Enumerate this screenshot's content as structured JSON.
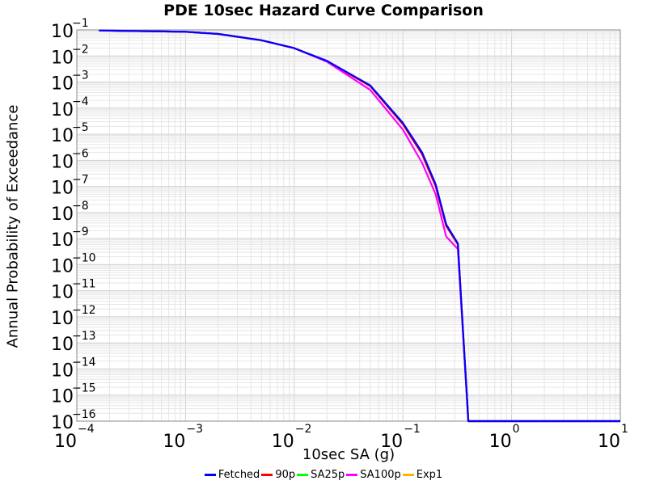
{
  "chart_data": {
    "type": "line",
    "title": "PDE 10sec Hazard Curve Comparison",
    "xlabel": "10sec SA (g)",
    "ylabel": "Annual Probability of Exceedance",
    "x_scale": "log",
    "y_scale": "log",
    "xlim": [
      0.0001,
      10
    ],
    "ylim": [
      1e-16,
      0.1
    ],
    "grid": true,
    "legend_position": "bottom",
    "x_ticks": [
      {
        "base": "10",
        "exp": "−4",
        "value": 0.0001
      },
      {
        "base": "10",
        "exp": "−3",
        "value": 0.001
      },
      {
        "base": "10",
        "exp": "−2",
        "value": 0.01
      },
      {
        "base": "10",
        "exp": "−1",
        "value": 0.1
      },
      {
        "base": "10",
        "exp": "0",
        "value": 1
      },
      {
        "base": "10",
        "exp": "1",
        "value": 10
      }
    ],
    "y_ticks": [
      {
        "base": "10",
        "exp": "−1",
        "value": 0.1
      },
      {
        "base": "10",
        "exp": "−2",
        "value": 0.01
      },
      {
        "base": "10",
        "exp": "−3",
        "value": 0.001
      },
      {
        "base": "10",
        "exp": "−4",
        "value": 0.0001
      },
      {
        "base": "10",
        "exp": "−5",
        "value": 1e-05
      },
      {
        "base": "10",
        "exp": "−6",
        "value": 1e-06
      },
      {
        "base": "10",
        "exp": "−7",
        "value": 1e-07
      },
      {
        "base": "10",
        "exp": "−8",
        "value": 1e-08
      },
      {
        "base": "10",
        "exp": "−9",
        "value": 1e-09
      },
      {
        "base": "10",
        "exp": "−10",
        "value": 1e-10
      },
      {
        "base": "10",
        "exp": "−11",
        "value": 1e-11
      },
      {
        "base": "10",
        "exp": "−12",
        "value": 1e-12
      },
      {
        "base": "10",
        "exp": "−13",
        "value": 1e-13
      },
      {
        "base": "10",
        "exp": "−14",
        "value": 1e-14
      },
      {
        "base": "10",
        "exp": "−15",
        "value": 1e-15
      },
      {
        "base": "10",
        "exp": "−16",
        "value": 1e-16
      }
    ],
    "series": [
      {
        "name": "Fetched",
        "color": "#0000ff",
        "x": [
          0.00016,
          0.001,
          0.002,
          0.005,
          0.01,
          0.02,
          0.05,
          0.1,
          0.15,
          0.2,
          0.25,
          0.32,
          0.4,
          0.5,
          1,
          10
        ],
        "y": [
          0.095,
          0.085,
          0.07,
          0.04,
          0.02,
          0.0065,
          0.00075,
          2.7e-05,
          2e-06,
          1.2e-07,
          3.5e-09,
          6.5e-10,
          1e-16,
          1e-16,
          1e-16,
          1e-16
        ]
      },
      {
        "name": "90p",
        "color": "#ff0000",
        "x": [
          0.00016,
          0.001,
          0.002,
          0.005,
          0.01,
          0.02,
          0.05,
          0.1,
          0.15,
          0.2,
          0.25,
          0.32,
          0.4,
          0.5,
          1,
          10
        ],
        "y": [
          0.095,
          0.085,
          0.07,
          0.04,
          0.02,
          0.0063,
          0.0007,
          2.4e-05,
          1.7e-06,
          1e-07,
          3e-09,
          6e-10,
          1e-16,
          1e-16,
          1e-16,
          1e-16
        ]
      },
      {
        "name": "SA25p",
        "color": "#00ff00",
        "x": [
          0.00016,
          0.001,
          0.002,
          0.005,
          0.01,
          0.02,
          0.05,
          0.1,
          0.15,
          0.2,
          0.25,
          0.32,
          0.4,
          0.5,
          1,
          10
        ],
        "y": [
          0.095,
          0.085,
          0.07,
          0.04,
          0.02,
          0.0064,
          0.00072,
          2.5e-05,
          1.8e-06,
          1.1e-07,
          3.2e-09,
          6.2e-10,
          1e-16,
          1e-16,
          1e-16,
          1e-16
        ]
      },
      {
        "name": "SA100p",
        "color": "#ff00ff",
        "x": [
          0.00016,
          0.001,
          0.002,
          0.005,
          0.01,
          0.02,
          0.05,
          0.1,
          0.15,
          0.2,
          0.25,
          0.32,
          0.4,
          0.5,
          1,
          10
        ],
        "y": [
          0.095,
          0.085,
          0.07,
          0.04,
          0.02,
          0.006,
          0.0005,
          1.5e-05,
          8e-07,
          5e-08,
          1.2e-09,
          4e-10,
          1e-16,
          1e-16,
          1e-16,
          1e-16
        ]
      },
      {
        "name": "Exp1",
        "color": "#ffb000",
        "x": [
          0.00016,
          0.001,
          0.002,
          0.005,
          0.01,
          0.02,
          0.05,
          0.1,
          0.15,
          0.2,
          0.25,
          0.32,
          0.4,
          0.5,
          1,
          10
        ],
        "y": [
          0.095,
          0.085,
          0.07,
          0.04,
          0.02,
          0.0064,
          0.00073,
          2.6e-05,
          1.9e-06,
          1.1e-07,
          3.3e-09,
          6.3e-10,
          1e-16,
          1e-16,
          1e-16,
          1e-16
        ]
      }
    ]
  }
}
